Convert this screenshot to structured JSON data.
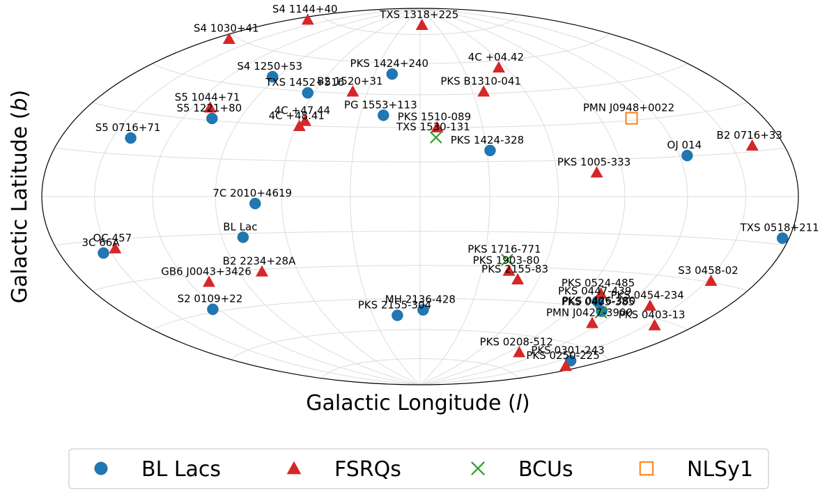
{
  "chart_data": {
    "type": "scatter",
    "projection": "aitoff",
    "xlabel_prefix": "Galactic Longitude (",
    "xlabel_var": "l",
    "xlabel_suffix": ")",
    "ylabel_prefix": "Galactic Latitude (",
    "ylabel_var": "b",
    "ylabel_suffix": ")",
    "grid": true,
    "legend_position": "bottom",
    "series": [
      {
        "name": "BL Lacs",
        "marker": "circle",
        "color": "#1f77b4",
        "points": [
          {
            "label": "S4 1250+53",
            "x": -0.39,
            "y": 0.637
          },
          {
            "label": "PKS 1424+240",
            "x": -0.074,
            "y": 0.651
          },
          {
            "label": "TXS 1452+516",
            "x": -0.297,
            "y": 0.551
          },
          {
            "label": "S5 1221+80",
            "x": -0.55,
            "y": 0.415
          },
          {
            "label": "S5 0716+71",
            "x": -0.765,
            "y": 0.311
          },
          {
            "label": "PG 1553+113",
            "x": -0.097,
            "y": 0.432
          },
          {
            "label": "PKS 1424-328",
            "x": 0.185,
            "y": 0.245
          },
          {
            "label": "OJ 014",
            "x": 0.706,
            "y": 0.218
          },
          {
            "label": "7C 2010+4619",
            "x": -0.436,
            "y": -0.037
          },
          {
            "label": "BL Lac",
            "x": -0.468,
            "y": -0.216
          },
          {
            "label": "3C 66A",
            "x": -0.837,
            "y": -0.3
          },
          {
            "label": "TXS 0518+211",
            "x": 0.958,
            "y": -0.221
          },
          {
            "label": "S2 0109+22",
            "x": -0.548,
            "y": -0.599
          },
          {
            "label": "MH 2136-428",
            "x": 0.008,
            "y": -0.602
          },
          {
            "label": "PKS 2155-304",
            "x": -0.06,
            "y": -0.631
          },
          {
            "label": "PKS 0447-439",
            "x": 0.469,
            "y": -0.557
          },
          {
            "label": "PKS 0426-380",
            "x": 0.48,
            "y": -0.609
          },
          {
            "label": "PKS 0301-243",
            "x": 0.398,
            "y": -0.872
          }
        ]
      },
      {
        "name": "FSRQs",
        "marker": "triangle",
        "color": "#d62728",
        "points": [
          {
            "label": "S4 1144+40",
            "x": -0.297,
            "y": 0.94
          },
          {
            "label": "TXS 1318+225",
            "x": 0.005,
            "y": 0.912
          },
          {
            "label": "S4 1030+41",
            "x": -0.505,
            "y": 0.838
          },
          {
            "label": "4C +04.42",
            "x": 0.208,
            "y": 0.686
          },
          {
            "label": "B2 1520+31",
            "x": -0.178,
            "y": 0.558
          },
          {
            "label": "PKS B1310-041",
            "x": 0.168,
            "y": 0.558
          },
          {
            "label": "S5 1044+71",
            "x": -0.555,
            "y": 0.473
          },
          {
            "label": "4C +47.44",
            "x": -0.304,
            "y": 0.402
          },
          {
            "label": "4C +48.41",
            "x": -0.319,
            "y": 0.375
          },
          {
            "label": "PKS 1510-089",
            "x": 0.045,
            "y": 0.368
          },
          {
            "label": "B2 0716+33",
            "x": 0.878,
            "y": 0.271
          },
          {
            "label": "PKS 1005-333",
            "x": 0.467,
            "y": 0.128
          },
          {
            "label": "OC 457",
            "x": -0.806,
            "y": -0.275
          },
          {
            "label": "B2 2234+28A",
            "x": -0.418,
            "y": -0.398
          },
          {
            "label": "GB6 J0043+3426",
            "x": -0.558,
            "y": -0.453
          },
          {
            "label": "PKS 1903-80",
            "x": 0.235,
            "y": -0.394
          },
          {
            "label": "PKS 2155-83",
            "x": 0.258,
            "y": -0.44
          },
          {
            "label": "S3 0458-02",
            "x": 0.769,
            "y": -0.448
          },
          {
            "label": "PKS 0524-485",
            "x": 0.478,
            "y": -0.515
          },
          {
            "label": "PKS 0454-234",
            "x": 0.608,
            "y": -0.58
          },
          {
            "label": "PMN J0427-3900",
            "x": 0.455,
            "y": -0.672
          },
          {
            "label": "PKS 0403-13",
            "x": 0.62,
            "y": -0.684
          },
          {
            "label": "PKS 0208-512",
            "x": 0.262,
            "y": -0.827
          },
          {
            "label": "PKS 0250-225",
            "x": 0.385,
            "y": -0.9
          }
        ]
      },
      {
        "name": "BCUs",
        "marker": "x",
        "color": "#2ca02c",
        "points": [
          {
            "label": "TXS 1530-131",
            "x": 0.042,
            "y": 0.314
          },
          {
            "label": "PKS 1716-771",
            "x": 0.23,
            "y": -0.336
          },
          {
            "label": "PKS 0405-385",
            "x": 0.478,
            "y": -0.615
          }
        ]
      },
      {
        "name": "NLSy1",
        "marker": "square",
        "color": "#ff7f0e",
        "points": [
          {
            "label": "PMN J0948+0022",
            "x": 0.559,
            "y": 0.416
          }
        ]
      }
    ]
  }
}
